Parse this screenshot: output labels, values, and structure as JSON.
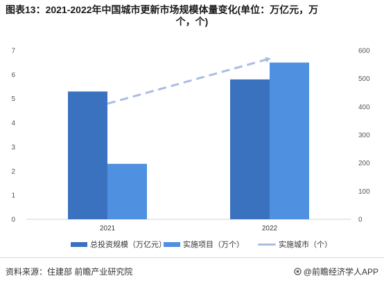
{
  "title_line1": "图表13：2021-2022年中国城市更新市场规模体量变化(单位：万亿元，万",
  "title_line2": "个，个)",
  "colors": {
    "investment": "#3a72c0",
    "projects": "#4f91e0",
    "cities": "#a9bde3"
  },
  "chart_data": {
    "type": "bar",
    "categories": [
      "2021",
      "2022"
    ],
    "series": [
      {
        "name": "总投资规模（万亿元）",
        "type": "bar",
        "axis": "left",
        "values": [
          5.3,
          5.8
        ]
      },
      {
        "name": "实施项目（万个）",
        "type": "bar",
        "axis": "left",
        "values": [
          2.3,
          6.5
        ]
      },
      {
        "name": "实施城市（个）",
        "type": "line",
        "axis": "right",
        "values": [
          411,
          571
        ]
      }
    ],
    "left_axis": {
      "min": 0,
      "max": 7,
      "ticks": [
        "0",
        "1",
        "2",
        "3",
        "4",
        "5",
        "6",
        "7"
      ]
    },
    "right_axis": {
      "min": 0,
      "max": 600,
      "ticks": [
        "0",
        "100",
        "200",
        "300",
        "400",
        "500",
        "600"
      ]
    },
    "legend_position": "bottom"
  },
  "legend": {
    "investment": "总投资规模（万亿元）",
    "projects": "实施项目（万个）",
    "cities": "实施城市（个）"
  },
  "footer": {
    "source": "资料来源：住建部 前瞻产业研究院",
    "brand": "@前瞻经济学人APP"
  }
}
